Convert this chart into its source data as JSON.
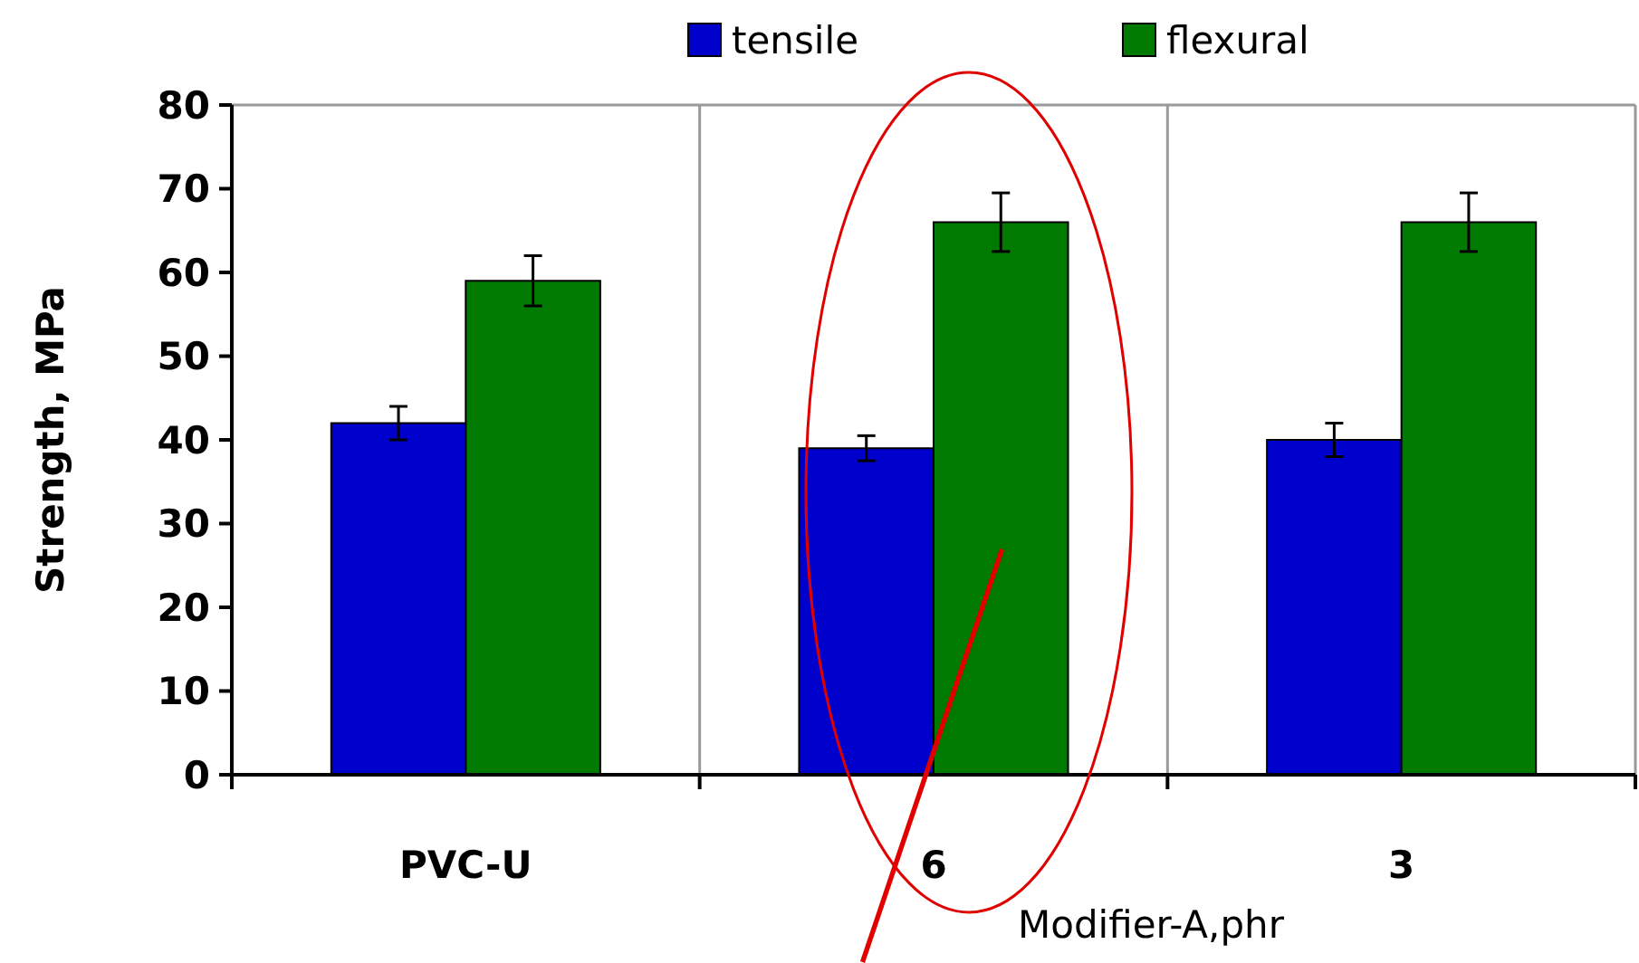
{
  "chart_data": {
    "type": "bar",
    "xlabel": "Modifier-A,phr",
    "ylabel": "Strength, MPa",
    "categories": [
      "PVC-U",
      "6",
      "3"
    ],
    "series": [
      {
        "name": "tensile",
        "color": "#0000cc",
        "values": [
          42,
          39,
          40
        ],
        "errors": [
          2,
          1.5,
          2
        ]
      },
      {
        "name": "flexural",
        "color": "#007a00",
        "values": [
          59,
          66,
          66
        ],
        "errors": [
          3,
          3.5,
          3.5
        ]
      }
    ],
    "ylim": [
      0,
      80
    ],
    "yticks": [
      0,
      10,
      20,
      30,
      40,
      50,
      60,
      70,
      80
    ],
    "grid": "x",
    "legend": "top"
  }
}
